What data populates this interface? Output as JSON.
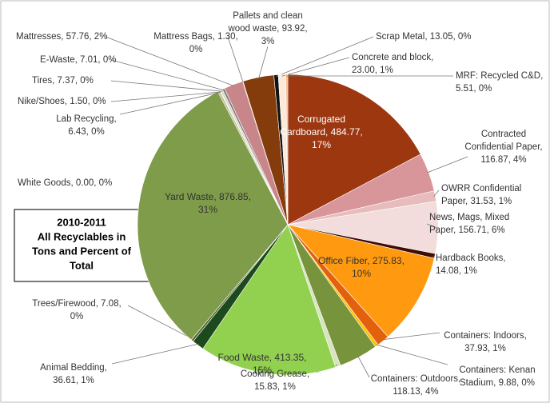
{
  "chart_data": {
    "type": "pie",
    "title": [
      "2010-2011",
      "All Recyclables in",
      "Tons and Percent of",
      "Total"
    ],
    "values": [
      484.77,
      116.87,
      31.53,
      156.71,
      14.08,
      275.83,
      37.93,
      9.88,
      118.13,
      15.83,
      413.35,
      36.61,
      7.08,
      0.0,
      876.85,
      6.43,
      1.5,
      7.37,
      7.01,
      57.76,
      1.3,
      93.92,
      13.05,
      23.0,
      5.51
    ],
    "value_labels": [
      [
        "Corrugated",
        "Cardboard, 484.77,",
        "17%"
      ],
      [
        "Contracted",
        "Confidential Paper,",
        "116.87, 4%"
      ],
      [
        "OWRR Confidential",
        "Paper, 31.53, 1%"
      ],
      [
        "News, Mags, Mixed",
        "Paper, 156.71, 6%"
      ],
      [
        "Hardback Books,",
        "14.08, 1%"
      ],
      [
        "Office Fiber, 275.83,",
        "10%"
      ],
      [
        "Containers: Indoors,",
        "37.93, 1%"
      ],
      [
        "Containers: Kenan",
        "Stadium, 9.88, 0%"
      ],
      [
        "Containers: Outdoors,",
        "118.13, 4%"
      ],
      [
        "Cooking Grease,",
        "15.83, 1%"
      ],
      [
        "Food Waste, 413.35,",
        "15%"
      ],
      [
        "Animal Bedding,",
        "36.61, 1%"
      ],
      [
        "Trees/Firewood, 7.08,",
        "0%"
      ],
      [
        "White Goods, 0.00, 0%"
      ],
      [
        "Yard Waste, 876.85,",
        "31%"
      ],
      [
        "Lab Recycling,",
        "6.43, 0%"
      ],
      [
        "Nike/Shoes, 1.50, 0%"
      ],
      [
        "Tires, 7.37, 0%"
      ],
      [
        "E-Waste, 7.01, 0%"
      ],
      [
        "Mattresses, 57.76, 2%"
      ],
      [
        "Mattress Bags, 1.30,",
        "0%"
      ],
      [
        "Pallets and clean",
        "wood waste, 93.92,",
        "3%"
      ],
      [
        "Scrap Metal, 13.05, 0%"
      ],
      [
        "Concrete and block,",
        "23.00, 1%"
      ],
      [
        "MRF: Recycled C&D,",
        "5.51, 0%"
      ]
    ],
    "colors": [
      "#9c3710",
      "#d9969a",
      "#e8bcbc",
      "#f3dcdc",
      "#3f0d04",
      "#ff9a10",
      "#e3600c",
      "#ffc000",
      "#77933c",
      "#d7e4bd",
      "#92d050",
      "#1d4a1d",
      "#4f6228",
      "#7f9c4a",
      "#7f9c4a",
      "#c4bd97",
      "#948a54",
      "#ddd9c3",
      "#7f7f7f",
      "#c9868a",
      "#e8bcbc",
      "#843c0c",
      "#111111",
      "#fde9d9",
      "#f4b183"
    ]
  }
}
